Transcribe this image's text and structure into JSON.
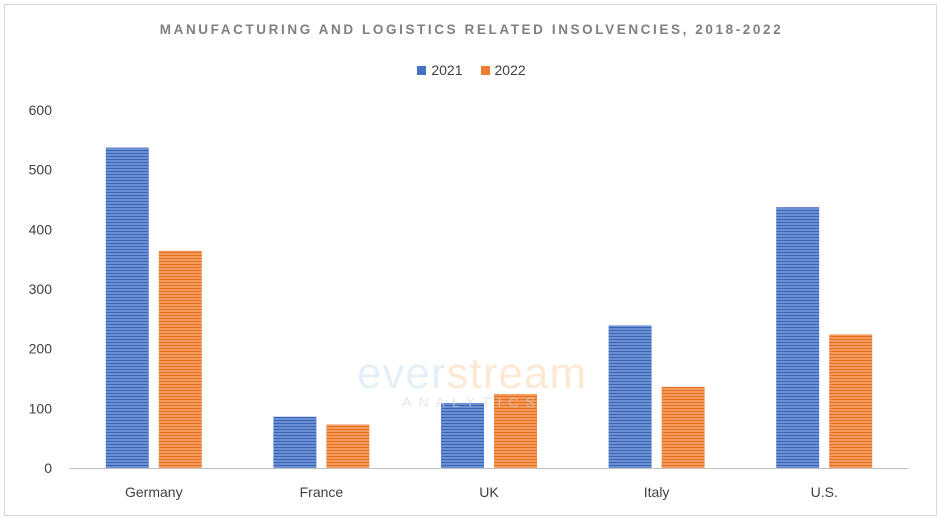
{
  "chart_data": {
    "type": "bar",
    "title": "MANUFACTURING AND LOGISTICS RELATED INSOLVENCIES, 2018-2022",
    "categories": [
      "Germany",
      "France",
      "UK",
      "Italy",
      "U.S."
    ],
    "series": [
      {
        "name": "2021",
        "values": [
          537,
          86,
          109,
          239,
          437
        ],
        "color": "#4472c4"
      },
      {
        "name": "2022",
        "values": [
          364,
          73,
          124,
          136,
          224
        ],
        "color": "#ed7d31"
      }
    ],
    "ylim": [
      0,
      600
    ],
    "yticks": [
      0,
      100,
      200,
      300,
      400,
      500,
      600
    ],
    "grid": false,
    "legend_position": "top-center"
  },
  "watermark": {
    "main_part1": "ever",
    "main_part2": "stream",
    "sub": "ANALYTICS"
  }
}
